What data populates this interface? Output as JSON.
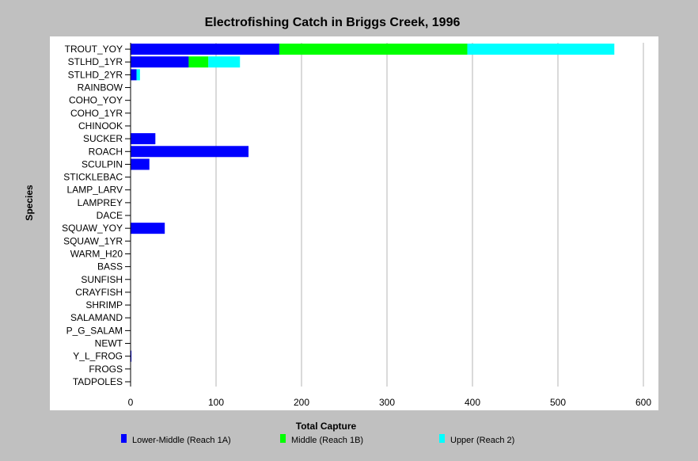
{
  "chart_data": {
    "type": "bar",
    "orientation": "horizontal",
    "stacked": true,
    "title": "Electrofishing Catch in Briggs Creek, 1996",
    "xlabel": "Total Capture",
    "ylabel": "Species",
    "xlim": [
      0,
      600
    ],
    "xticks": [
      0,
      100,
      200,
      300,
      400,
      500,
      600
    ],
    "grid": "vertical",
    "legend_position": "bottom",
    "categories": [
      "TROUT_YOY",
      "STLHD_1YR",
      "STLHD_2YR",
      "RAINBOW",
      "COHO_YOY",
      "COHO_1YR",
      "CHINOOK",
      "SUCKER",
      "ROACH",
      "SCULPIN",
      "STICKLEBAC",
      "LAMP_LARV",
      "LAMPREY",
      "DACE",
      "SQUAW_YOY",
      "SQUAW_1YR",
      "WARM_H20",
      "BASS",
      "SUNFISH",
      "CRAYFISH",
      "SHRIMP",
      "SALAMAND",
      "P_G_SALAM",
      "NEWT",
      "Y_L_FROG",
      "FROGS",
      "TADPOLES"
    ],
    "series": [
      {
        "name": "Lower-Middle (Reach 1A)",
        "color": "#0000ff",
        "values": [
          174,
          68,
          7,
          0,
          0,
          0,
          0,
          29,
          138,
          22,
          0,
          0,
          0,
          0,
          40,
          0,
          0,
          0,
          0,
          0,
          0,
          0,
          0,
          0,
          1,
          0,
          0
        ]
      },
      {
        "name": "Middle (Reach 1B)",
        "color": "#00ff00",
        "values": [
          220,
          23,
          0,
          0,
          0,
          0,
          0,
          0,
          0,
          0,
          0,
          0,
          0,
          0,
          0,
          0,
          0,
          0,
          0,
          0,
          0,
          0,
          0,
          0,
          0,
          0,
          0
        ]
      },
      {
        "name": "Upper (Reach 2)",
        "color": "#00ffff",
        "values": [
          172,
          37,
          4,
          0,
          0,
          0,
          0,
          0,
          0,
          0,
          0,
          0,
          0,
          0,
          0,
          0,
          0,
          0,
          0,
          0,
          0,
          0,
          0,
          0,
          0,
          0,
          0
        ]
      }
    ]
  },
  "colors": {
    "background": "#c0c0c0",
    "plot_area": "#ffffff",
    "gridline": "#b4b4b4"
  }
}
